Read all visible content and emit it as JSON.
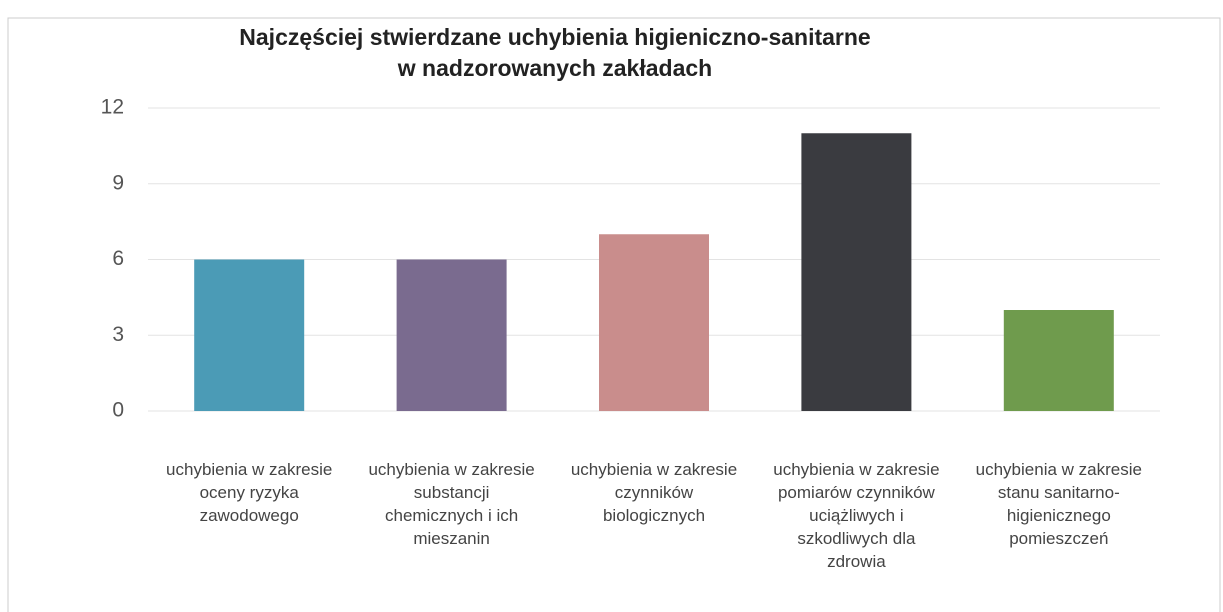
{
  "chart_data": {
    "type": "bar",
    "title": "Najczęściej stwierdzane uchybienia higieniczno-sanitarne\nw nadzorowanych zakładach",
    "categories": [
      "uchybienia  w zakresie oceny ryzyka zawodowego",
      "uchybienia w zakresie substancji chemicznych i ich mieszanin",
      "uchybienia w zakresie czynników biologicznych",
      "uchybienia w zakresie pomiarów czynników uciążliwych i szkodliwych dla zdrowia",
      "uchybienia w zakresie stanu sanitarno-higienicznego pomieszczeń"
    ],
    "values": [
      6,
      6,
      7,
      11,
      4
    ],
    "colors": [
      "#4b9bb6",
      "#7a6b8f",
      "#c98d8c",
      "#3a3b40",
      "#6f9b4d"
    ],
    "ylim": [
      0,
      12
    ],
    "yticks": [
      0,
      3,
      6,
      9,
      12
    ],
    "grid": true
  }
}
